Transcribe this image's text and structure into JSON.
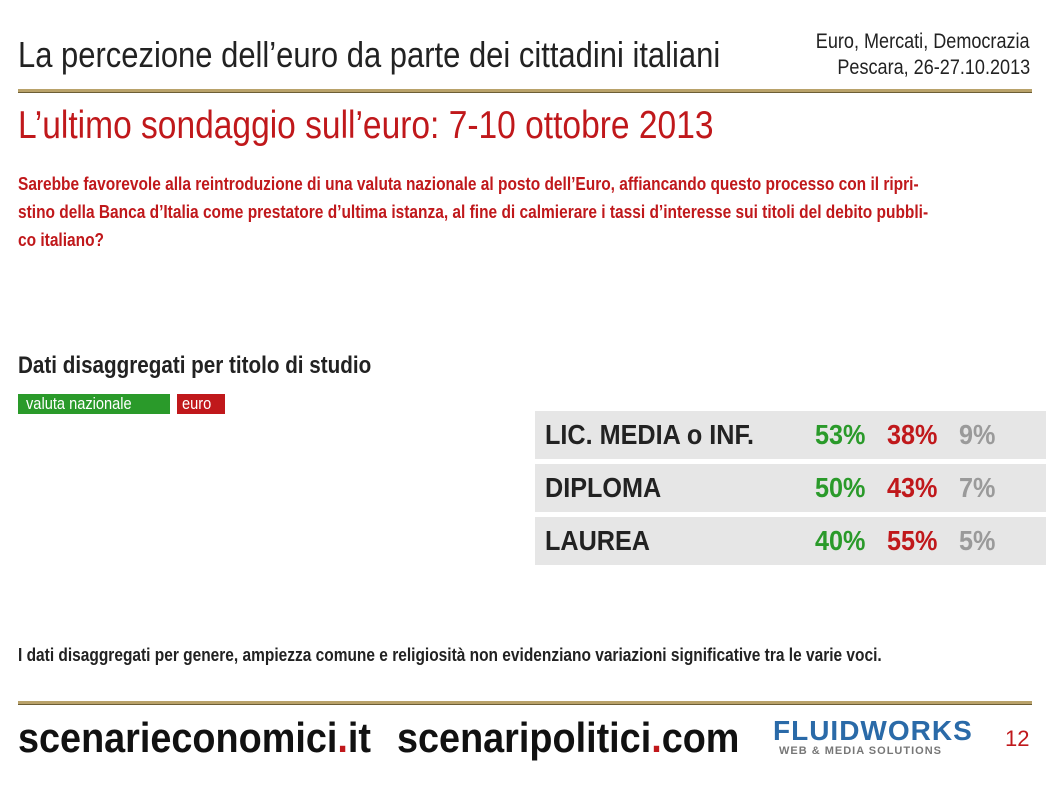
{
  "header": {
    "title": "La percezione dell’euro da parte dei cittadini italiani",
    "event": [
      "Euro, Mercati, Democrazia",
      "Pescara, 26-27.10.2013"
    ]
  },
  "subtitle": "L’ultimo sondaggio sull’euro: 7-10 ottobre 2013",
  "question": [
    "Sarebbe favorevole alla reintroduzione di una valuta nazionale al posto dell’Euro, affiancando questo processo con il ripri-",
    "stino della Banca d’Italia come prestatore d’ultima istanza, al fine di calmierare i tassi d’interesse sui titoli del debito pubbli-",
    "co italiano?"
  ],
  "section_title": "Dati disaggregati per titolo di studio",
  "legend": [
    "valuta nazionale",
    "euro"
  ],
  "table": {
    "rows": [
      [
        "LIC. MEDIA o INF.",
        "53%",
        "38%",
        "9%"
      ],
      [
        "DIPLOMA",
        "50%",
        "43%",
        "7%"
      ],
      [
        "LAUREA",
        "40%",
        "55%",
        "5%"
      ]
    ]
  },
  "note": "I dati disaggregati per genere, ampiezza comune e religiosità non evidenziano variazioni significative tra le varie voci.",
  "footer": {
    "site1": [
      "scenarieconomici",
      ".",
      "it"
    ],
    "site2": [
      "scenaripolitici",
      ".",
      "com"
    ],
    "logo": "FLUIDWORKS",
    "logo_tagline": "WEB & MEDIA SOLUTIONS",
    "page_number": "12"
  }
}
